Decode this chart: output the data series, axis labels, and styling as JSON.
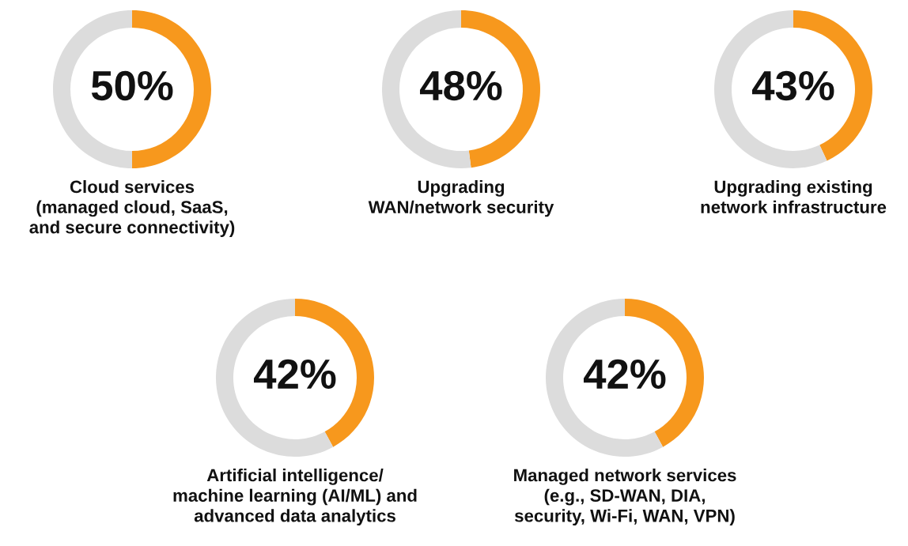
{
  "chart_data": [
    {
      "type": "donut",
      "categories": [
        null,
        null
      ],
      "values": [
        50,
        50
      ],
      "colors": [
        "#f7981d",
        "#dcdcdc"
      ],
      "value_labels": [
        "50%",
        null
      ],
      "xlabel": "Cloud services\n(managed cloud, SaaS,\nand secure connectivity)"
    },
    {
      "type": "donut",
      "categories": [
        null,
        null
      ],
      "values": [
        48,
        52
      ],
      "colors": [
        "#f7981d",
        "#dcdcdc"
      ],
      "value_labels": [
        "48%",
        null
      ],
      "xlabel": "Upgrading\nWAN/network security"
    },
    {
      "type": "donut",
      "categories": [
        null,
        null
      ],
      "values": [
        43,
        57
      ],
      "colors": [
        "#f7981d",
        "#dcdcdc"
      ],
      "value_labels": [
        "43%",
        null
      ],
      "xlabel": "Upgrading existing\nnetwork infrastructure"
    },
    {
      "type": "donut",
      "categories": [
        null,
        null
      ],
      "values": [
        42,
        58
      ],
      "colors": [
        "#f7981d",
        "#dcdcdc"
      ],
      "value_labels": [
        "42%",
        null
      ],
      "xlabel": "Artificial intelligence/\nmachine learning (AI/ML) and\nadvanced data analytics"
    },
    {
      "type": "donut",
      "categories": [
        null,
        null
      ],
      "values": [
        42,
        58
      ],
      "colors": [
        "#f7981d",
        "#dcdcdc"
      ],
      "value_labels": [
        "42%",
        null
      ],
      "xlabel": "Managed network services\n(e.g., SD-WAN, DIA,\nsecurity, Wi-Fi, WAN, VPN)"
    }
  ]
}
